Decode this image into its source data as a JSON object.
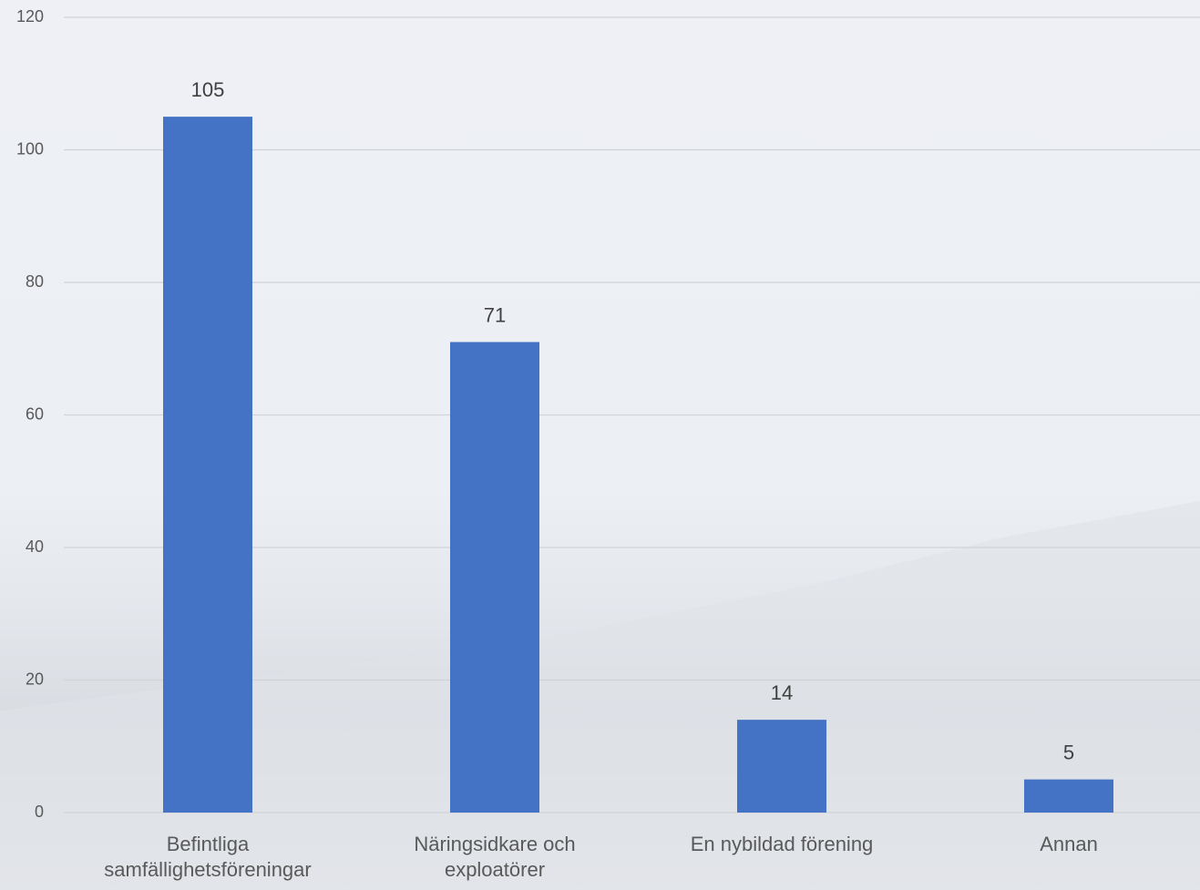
{
  "chart_data": {
    "type": "bar",
    "categories": [
      "Befintliga samfällighetsföreningar",
      "Näringsidkare och exploatörer",
      "En nybildad förening",
      "Annan"
    ],
    "values": [
      105,
      71,
      14,
      5
    ],
    "color": "#4472c4",
    "ylim": [
      0,
      120
    ],
    "yticks": [
      0,
      20,
      40,
      60,
      80,
      100,
      120
    ],
    "grid": true
  }
}
